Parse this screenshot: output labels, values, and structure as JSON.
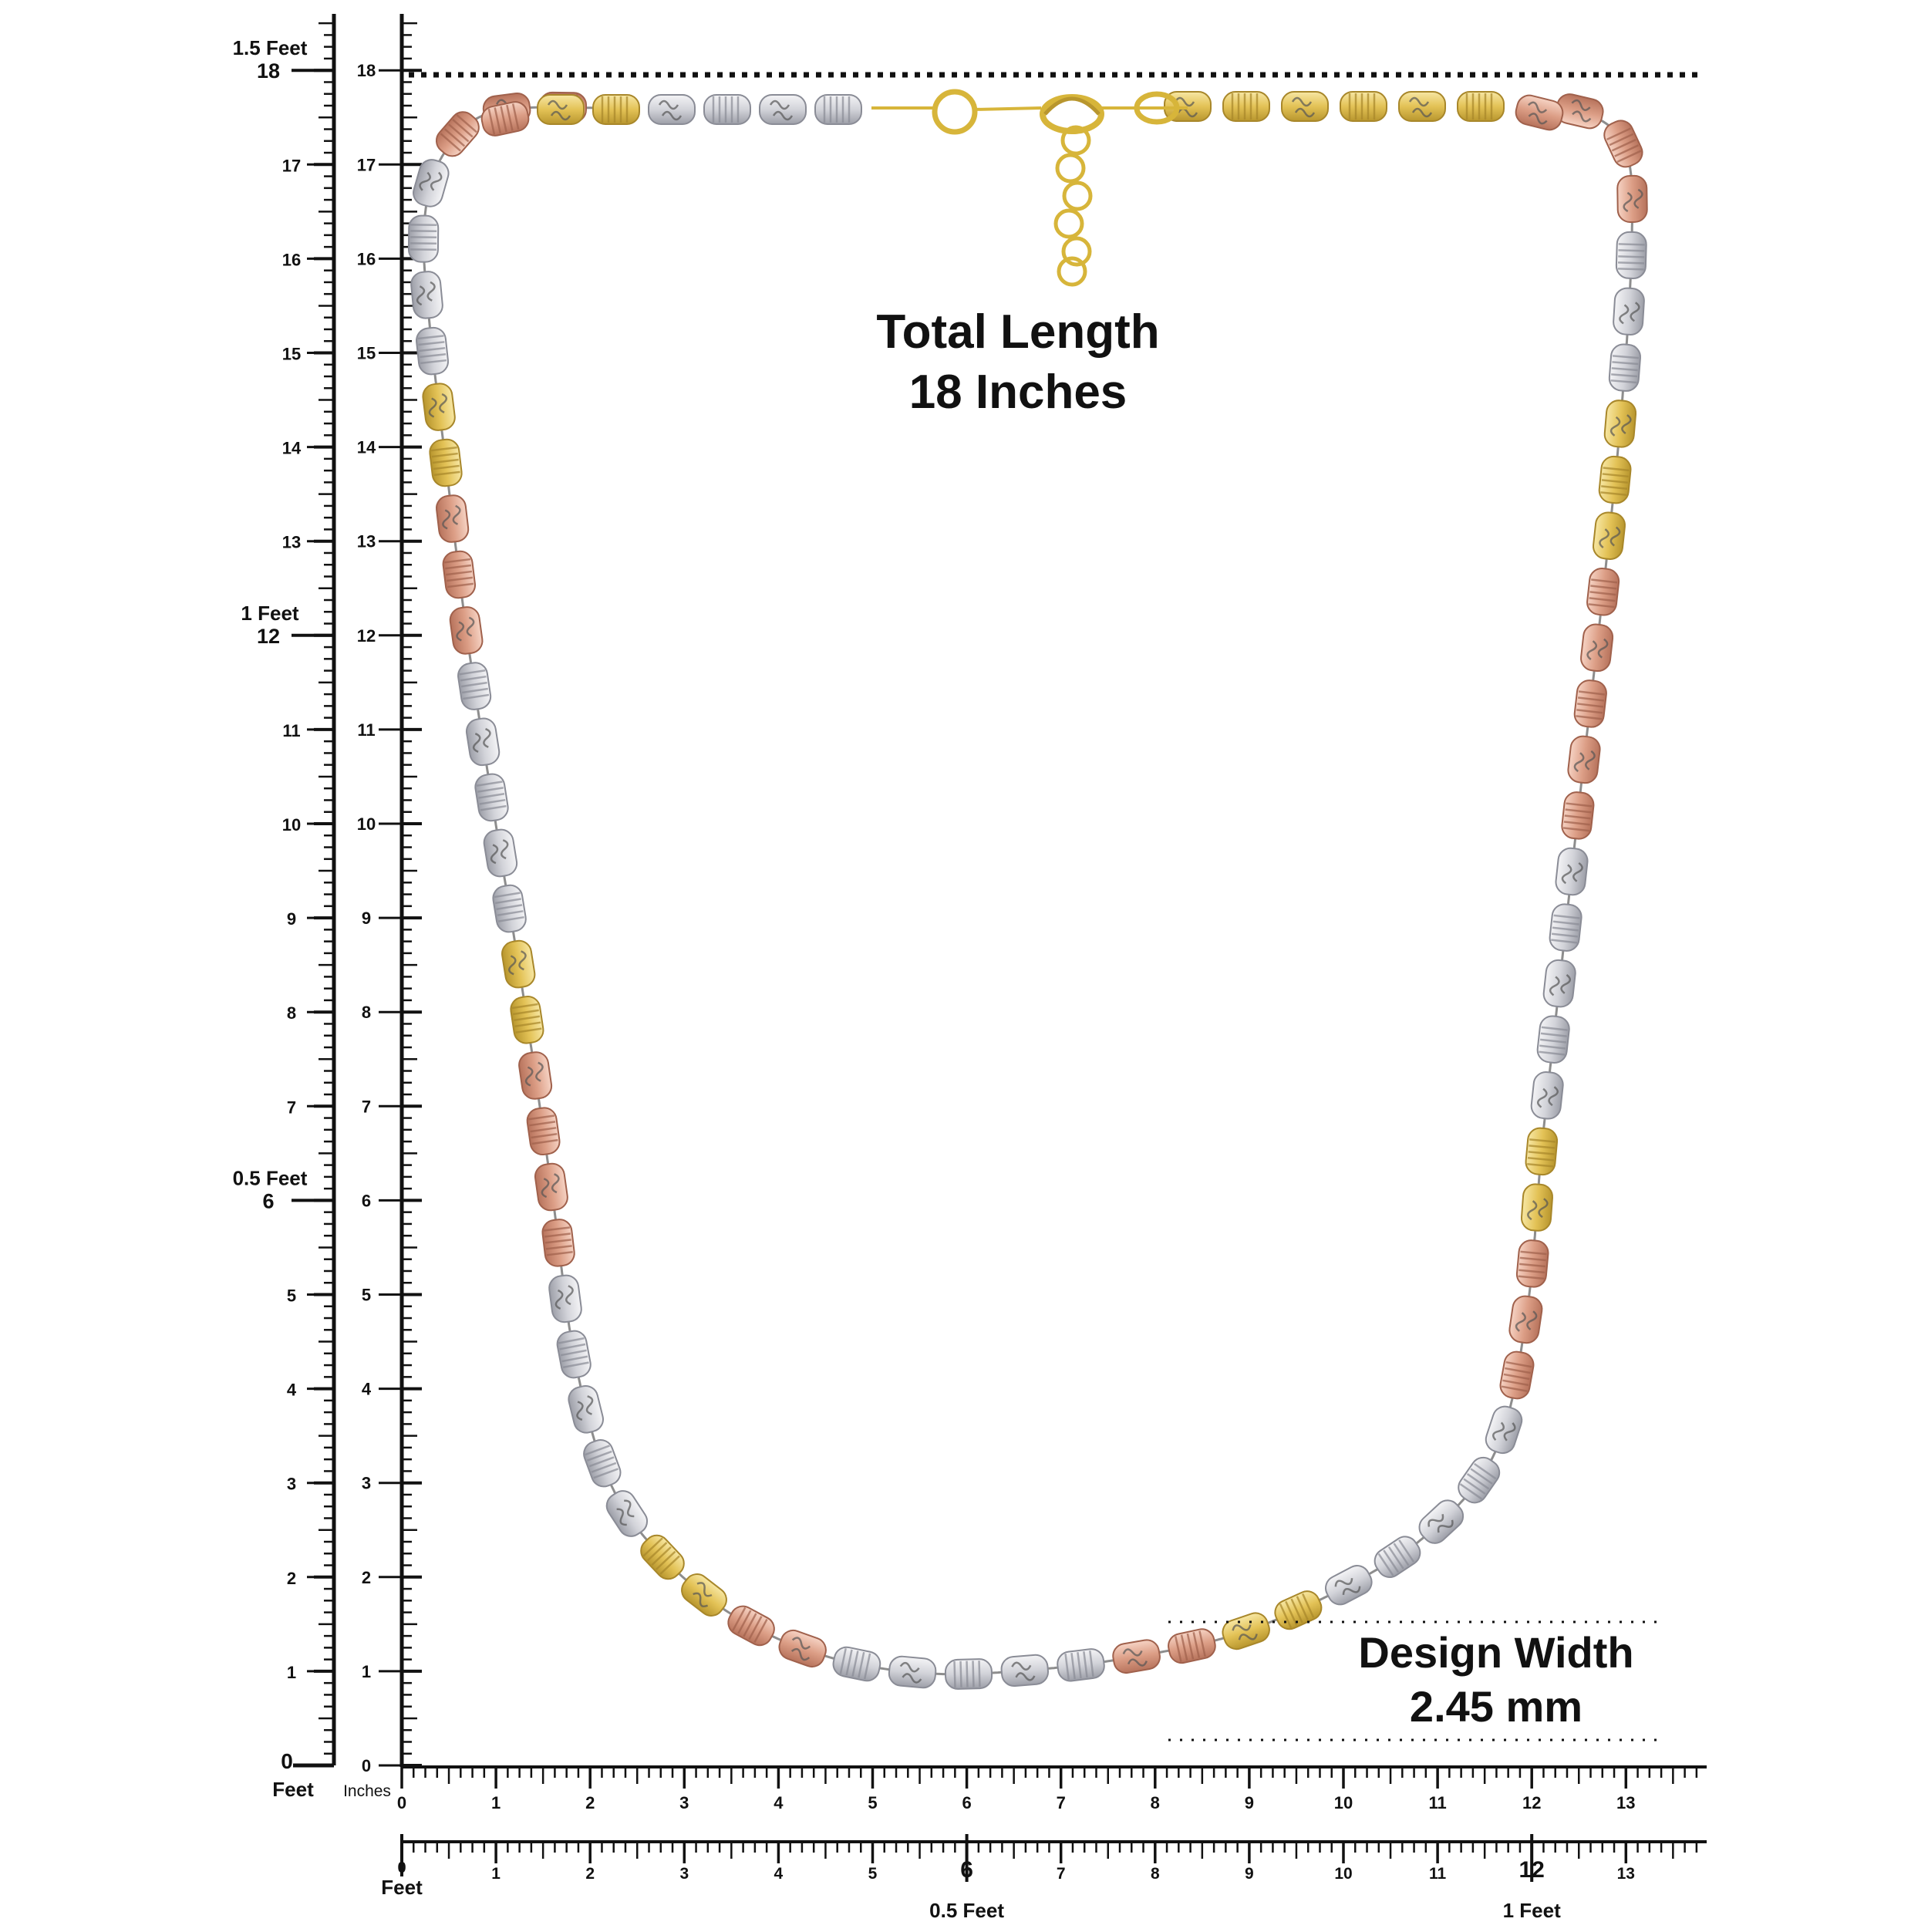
{
  "caption": {
    "total_length_line1": "Total Length",
    "total_length_line2": "18 Inches",
    "design_width_line1": "Design Width",
    "design_width_line2": "2.45 mm"
  },
  "left_ruler": {
    "major_labels": [
      "0",
      "1",
      "2",
      "3",
      "4",
      "5",
      "6",
      "7",
      "8",
      "9",
      "10",
      "11",
      "12",
      "13",
      "14",
      "15",
      "16",
      "17",
      "18"
    ],
    "feet_markers": [
      {
        "inches": 6,
        "text": "0.5 Feet"
      },
      {
        "inches": 12,
        "text": "1 Feet"
      },
      {
        "inches": 18,
        "text": "1.5 Feet"
      }
    ],
    "feet_unit_label": "Feet",
    "inches_unit_label": "Inches"
  },
  "bottom_ruler": {
    "inch_labels": [
      "0",
      "1",
      "2",
      "3",
      "4",
      "5",
      "6",
      "7",
      "8",
      "9",
      "10",
      "11",
      "12",
      "13"
    ],
    "zero_label": "0",
    "feet_label": "Feet",
    "half_feet_label": "0.5 Feet",
    "one_feet_label": "1 Feet"
  },
  "colors": {
    "yellow_gold": "#e3c256",
    "rose_gold": "#dc9e86",
    "white_gold": "#cfd0d6",
    "ink": "#111111"
  },
  "bead_sequence": [
    "rose",
    "rose",
    "rose",
    "white",
    "white",
    "white",
    "white",
    "yellow",
    "yellow",
    "rose",
    "rose",
    "rose",
    "white",
    "white",
    "white",
    "white",
    "white",
    "yellow",
    "yellow",
    "rose",
    "rose",
    "rose",
    "rose",
    "white",
    "white",
    "white",
    "white",
    "white",
    "yellow",
    "yellow",
    "rose",
    "rose",
    "white",
    "white",
    "white",
    "white",
    "white",
    "rose",
    "rose",
    "yellow",
    "yellow",
    "white",
    "white",
    "white",
    "white",
    "white",
    "rose",
    "rose",
    "rose",
    "yellow",
    "yellow",
    "white",
    "white",
    "white",
    "white",
    "white",
    "rose",
    "rose",
    "rose",
    "rose",
    "rose",
    "yellow",
    "yellow",
    "yellow",
    "white",
    "white",
    "white"
  ],
  "top_bead_sequence": [
    "rose",
    "yellow",
    "yellow",
    "white",
    "white",
    "white",
    "white",
    "yellow",
    "yellow",
    "yellow",
    "yellow",
    "yellow",
    "yellow",
    "yellow",
    "yellow",
    "yellow"
  ]
}
